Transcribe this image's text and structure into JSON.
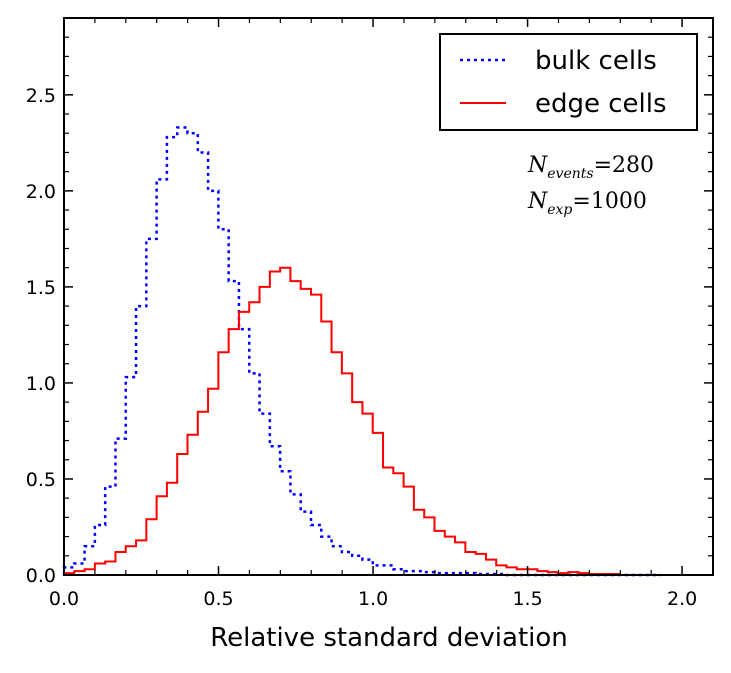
{
  "chart_data": {
    "type": "histogram",
    "title": "",
    "xlabel": "Relative standard deviation",
    "ylabel": "",
    "xlim": [
      0.0,
      2.1
    ],
    "ylim": [
      0.0,
      2.9
    ],
    "x_ticks": [
      0.0,
      0.5,
      1.0,
      1.5,
      2.0
    ],
    "x_tick_labels": [
      "0.0",
      "0.5",
      "1.0",
      "1.5",
      "2.0"
    ],
    "y_ticks": [
      0.0,
      0.5,
      1.0,
      1.5,
      2.0,
      2.5
    ],
    "y_tick_labels": [
      "0.0",
      "0.5",
      "1.0",
      "1.5",
      "2.0",
      "2.5"
    ],
    "legend_position": "top-right",
    "bin_width": 0.0333,
    "series": [
      {
        "name": "bulk cells",
        "color": "#0000ff",
        "linestyle": "dotted",
        "bin_start": 0.0,
        "values": [
          0.04,
          0.06,
          0.15,
          0.26,
          0.46,
          0.71,
          1.03,
          1.4,
          1.75,
          2.06,
          2.28,
          2.33,
          2.3,
          2.2,
          2.0,
          1.8,
          1.53,
          1.28,
          1.05,
          0.84,
          0.67,
          0.54,
          0.42,
          0.33,
          0.26,
          0.2,
          0.15,
          0.12,
          0.1,
          0.08,
          0.05,
          0.05,
          0.03,
          0.02,
          0.02,
          0.015,
          0.01,
          0.01,
          0.01,
          0.01,
          0.005,
          0.005,
          0.005,
          0.0,
          0.0,
          0.0,
          0.0,
          0.0,
          0.0,
          0.0,
          0.0,
          0.0,
          0.0,
          0.0,
          0.0,
          0.0,
          0.0,
          0.0
        ]
      },
      {
        "name": "edge cells",
        "color": "#ff0000",
        "linestyle": "solid",
        "bin_start": 0.0,
        "values": [
          0.01,
          0.02,
          0.03,
          0.06,
          0.07,
          0.12,
          0.15,
          0.18,
          0.29,
          0.41,
          0.48,
          0.63,
          0.73,
          0.85,
          0.97,
          1.16,
          1.28,
          1.37,
          1.42,
          1.5,
          1.58,
          1.6,
          1.53,
          1.49,
          1.46,
          1.32,
          1.16,
          1.05,
          0.9,
          0.84,
          0.74,
          0.56,
          0.53,
          0.46,
          0.34,
          0.3,
          0.23,
          0.2,
          0.17,
          0.12,
          0.11,
          0.08,
          0.05,
          0.04,
          0.03,
          0.03,
          0.02,
          0.015,
          0.01,
          0.015,
          0.01,
          0.005,
          0.005,
          0.005,
          0.0,
          0.0,
          0.0,
          0.0
        ]
      }
    ],
    "annotations": [
      {
        "base": "N",
        "sub": "events",
        "rest": "=280"
      },
      {
        "base": "N",
        "sub": "exp",
        "rest": "=1000"
      }
    ]
  }
}
